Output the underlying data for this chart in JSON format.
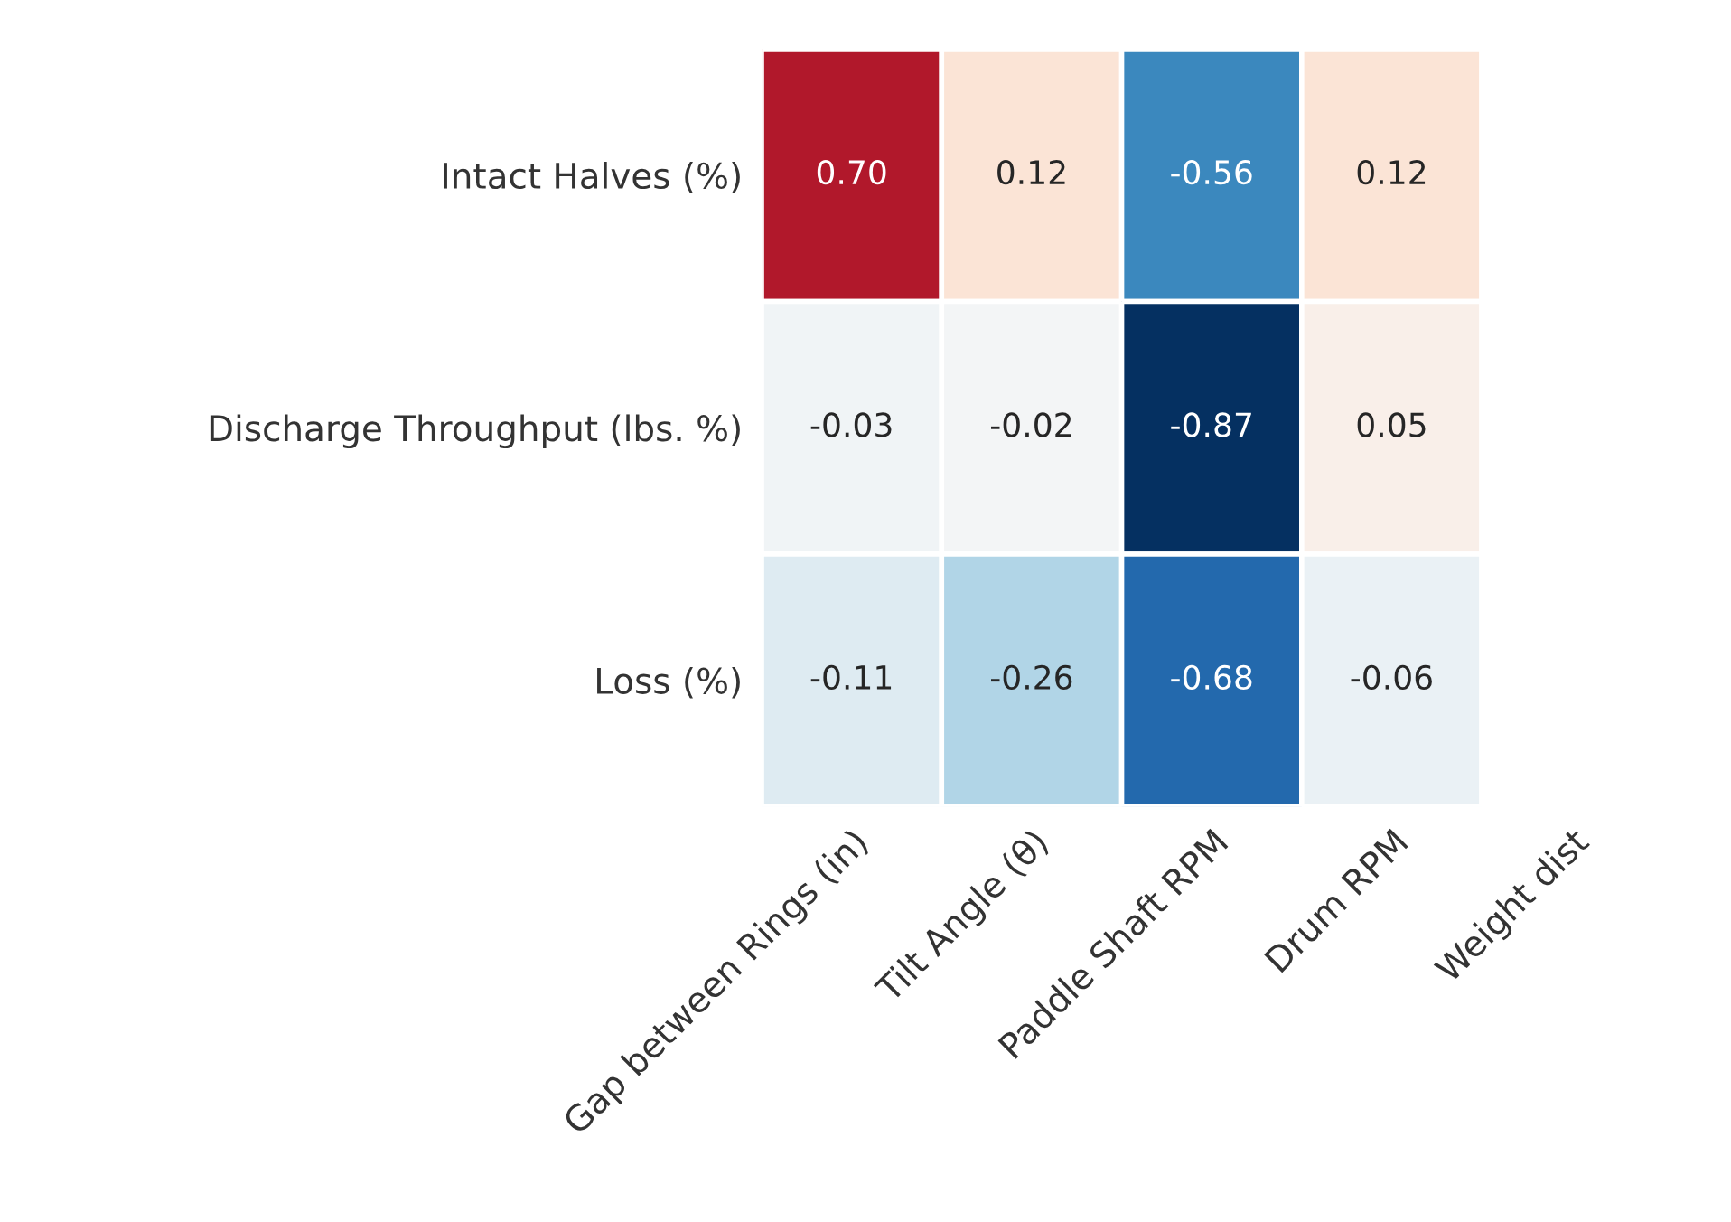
{
  "chart_data": {
    "type": "heatmap",
    "categories": [
      "Gap between Rings (in)",
      "Tilt Angle (θ)",
      "Paddle Shaft RPM",
      "Drum RPM",
      "Weight dist"
    ],
    "y_categories": [
      "Intact Halves (%)",
      "Discharge Throughput (lbs. %)",
      "Loss (%)"
    ],
    "cells": [
      [
        0.7,
        0.12,
        -0.56,
        0.12,
        null
      ],
      [
        -0.03,
        -0.02,
        -0.87,
        0.05,
        null
      ],
      [
        -0.11,
        -0.26,
        -0.68,
        -0.06,
        null
      ]
    ],
    "cell_labels": [
      [
        "0.70",
        "0.12",
        "-0.56",
        "0.12",
        null
      ],
      [
        "-0.03",
        "-0.02",
        "-0.87",
        "0.05",
        null
      ],
      [
        "-0.11",
        "-0.26",
        "-0.68",
        "-0.06",
        null
      ]
    ]
  }
}
